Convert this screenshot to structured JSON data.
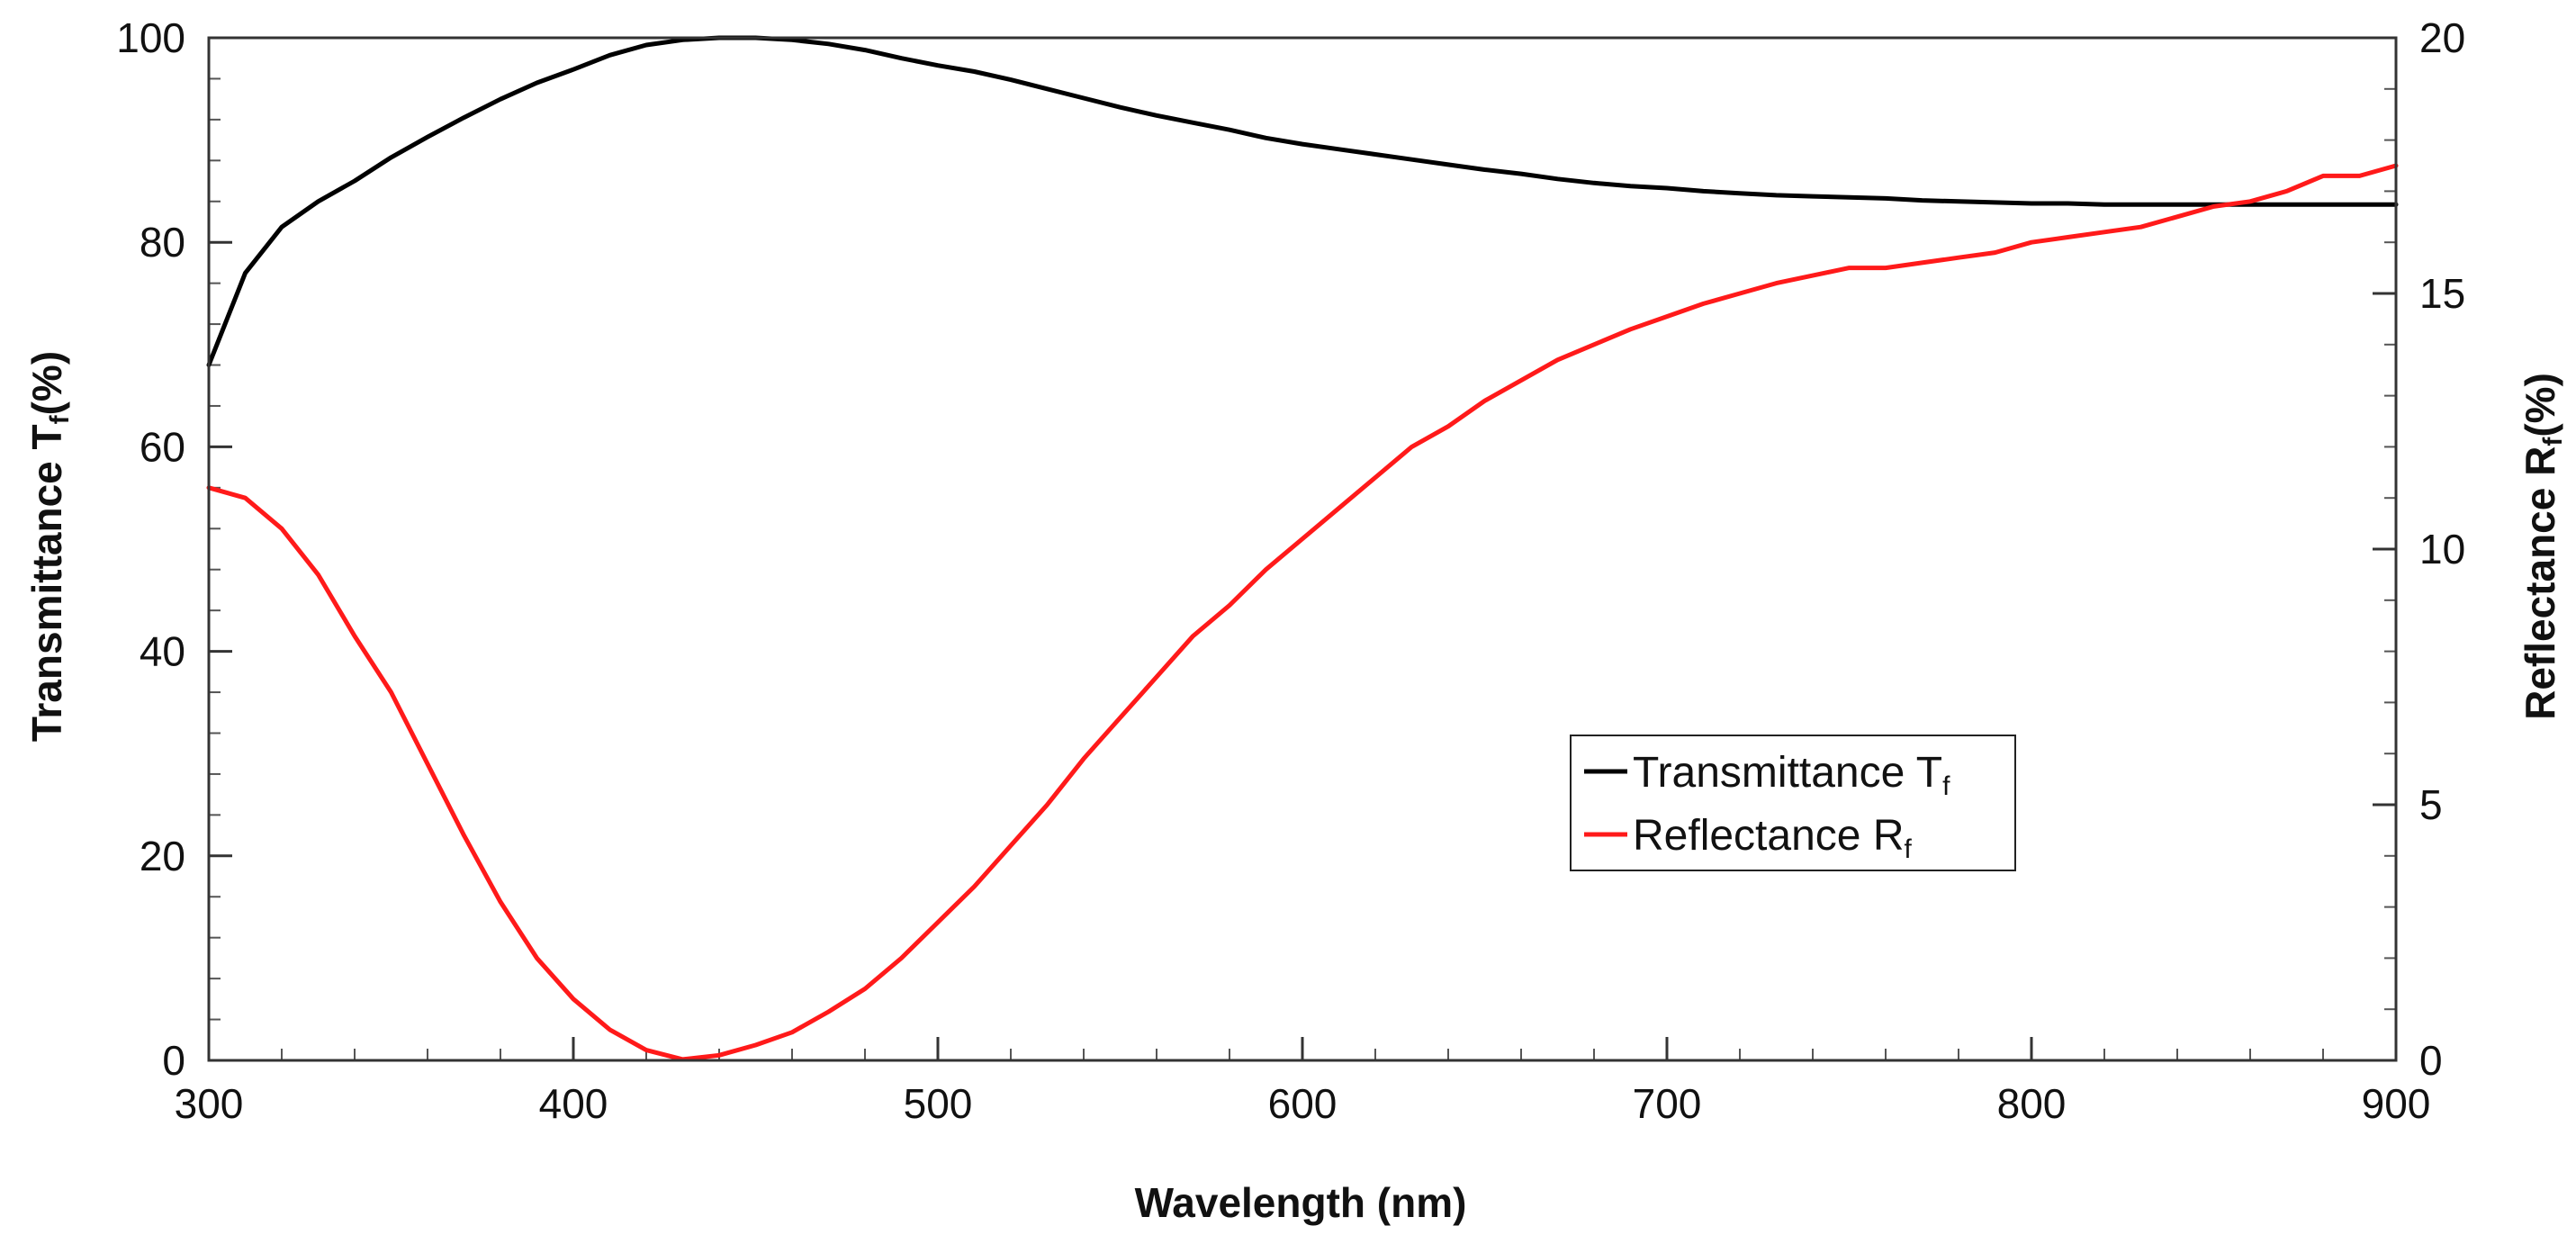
{
  "chart_data": {
    "type": "line",
    "x": [
      300,
      310,
      320,
      330,
      340,
      350,
      360,
      370,
      380,
      390,
      400,
      410,
      420,
      430,
      440,
      450,
      460,
      470,
      480,
      490,
      500,
      510,
      520,
      530,
      540,
      550,
      560,
      570,
      580,
      590,
      600,
      610,
      620,
      630,
      640,
      650,
      660,
      670,
      680,
      690,
      700,
      710,
      720,
      730,
      740,
      750,
      760,
      770,
      780,
      790,
      800,
      810,
      820,
      830,
      840,
      850,
      860,
      870,
      880,
      890,
      900
    ],
    "series": [
      {
        "name": "Transmittance T",
        "name_sub": "f",
        "color": "#000000",
        "axis": "left",
        "values": [
          68,
          77,
          81.5,
          84,
          86,
          88.3,
          90.3,
          92.2,
          94,
          95.6,
          96.9,
          98.3,
          99.3,
          99.8,
          100,
          100,
          99.8,
          99.4,
          98.8,
          98,
          97.3,
          96.7,
          95.9,
          95,
          94.1,
          93.2,
          92.4,
          91.7,
          91,
          90.2,
          89.6,
          89.1,
          88.6,
          88.1,
          87.6,
          87.1,
          86.7,
          86.2,
          85.8,
          85.5,
          85.3,
          85,
          84.8,
          84.6,
          84.5,
          84.4,
          84.3,
          84.1,
          84,
          83.9,
          83.8,
          83.8,
          83.7,
          83.7,
          83.7,
          83.7,
          83.7,
          83.7,
          83.7,
          83.7,
          83.7
        ]
      },
      {
        "name": "Reflectance R",
        "name_sub": "f",
        "color": "#ff1a1a",
        "axis": "right",
        "values": [
          11.2,
          11,
          10.4,
          9.5,
          8.3,
          7.2,
          5.8,
          4.4,
          3.1,
          2,
          1.2,
          0.6,
          0.2,
          0.02,
          0.1,
          0.3,
          0.55,
          0.95,
          1.4,
          2,
          2.7,
          3.4,
          4.2,
          5,
          5.9,
          6.7,
          7.5,
          8.3,
          8.9,
          9.6,
          10.2,
          10.8,
          11.4,
          12,
          12.4,
          12.9,
          13.3,
          13.7,
          14,
          14.3,
          14.55,
          14.8,
          15,
          15.2,
          15.35,
          15.5,
          15.5,
          15.6,
          15.7,
          15.8,
          16,
          16.1,
          16.2,
          16.3,
          16.5,
          16.7,
          16.8,
          17,
          17.3,
          17.3,
          17.5
        ]
      }
    ],
    "xlabel": "Wavelength (nm)",
    "ylabel_left": "Transmittance T",
    "ylabel_left_sub": "f",
    "ylabel_left_unit": "(%)",
    "ylabel_right": "Reflectance R",
    "ylabel_right_sub": "f",
    "ylabel_right_unit": "(%)",
    "xlim": [
      300,
      900
    ],
    "ylim_left": [
      0,
      100
    ],
    "ylim_right": [
      0,
      20
    ],
    "x_ticks": [
      300,
      400,
      500,
      600,
      700,
      800,
      900
    ],
    "x_tick_labels": [
      "300",
      "400",
      "500",
      "600",
      "700",
      "800",
      "900"
    ],
    "y_left_ticks": [
      0,
      20,
      40,
      60,
      80,
      100
    ],
    "y_left_tick_labels": [
      "0",
      "20",
      "40",
      "60",
      "80",
      "100"
    ],
    "y_right_ticks": [
      0,
      5,
      10,
      15,
      20
    ],
    "y_right_tick_labels": [
      "0",
      "5",
      "10",
      "15",
      "20"
    ],
    "grid": false,
    "legend_position": "center-right"
  }
}
